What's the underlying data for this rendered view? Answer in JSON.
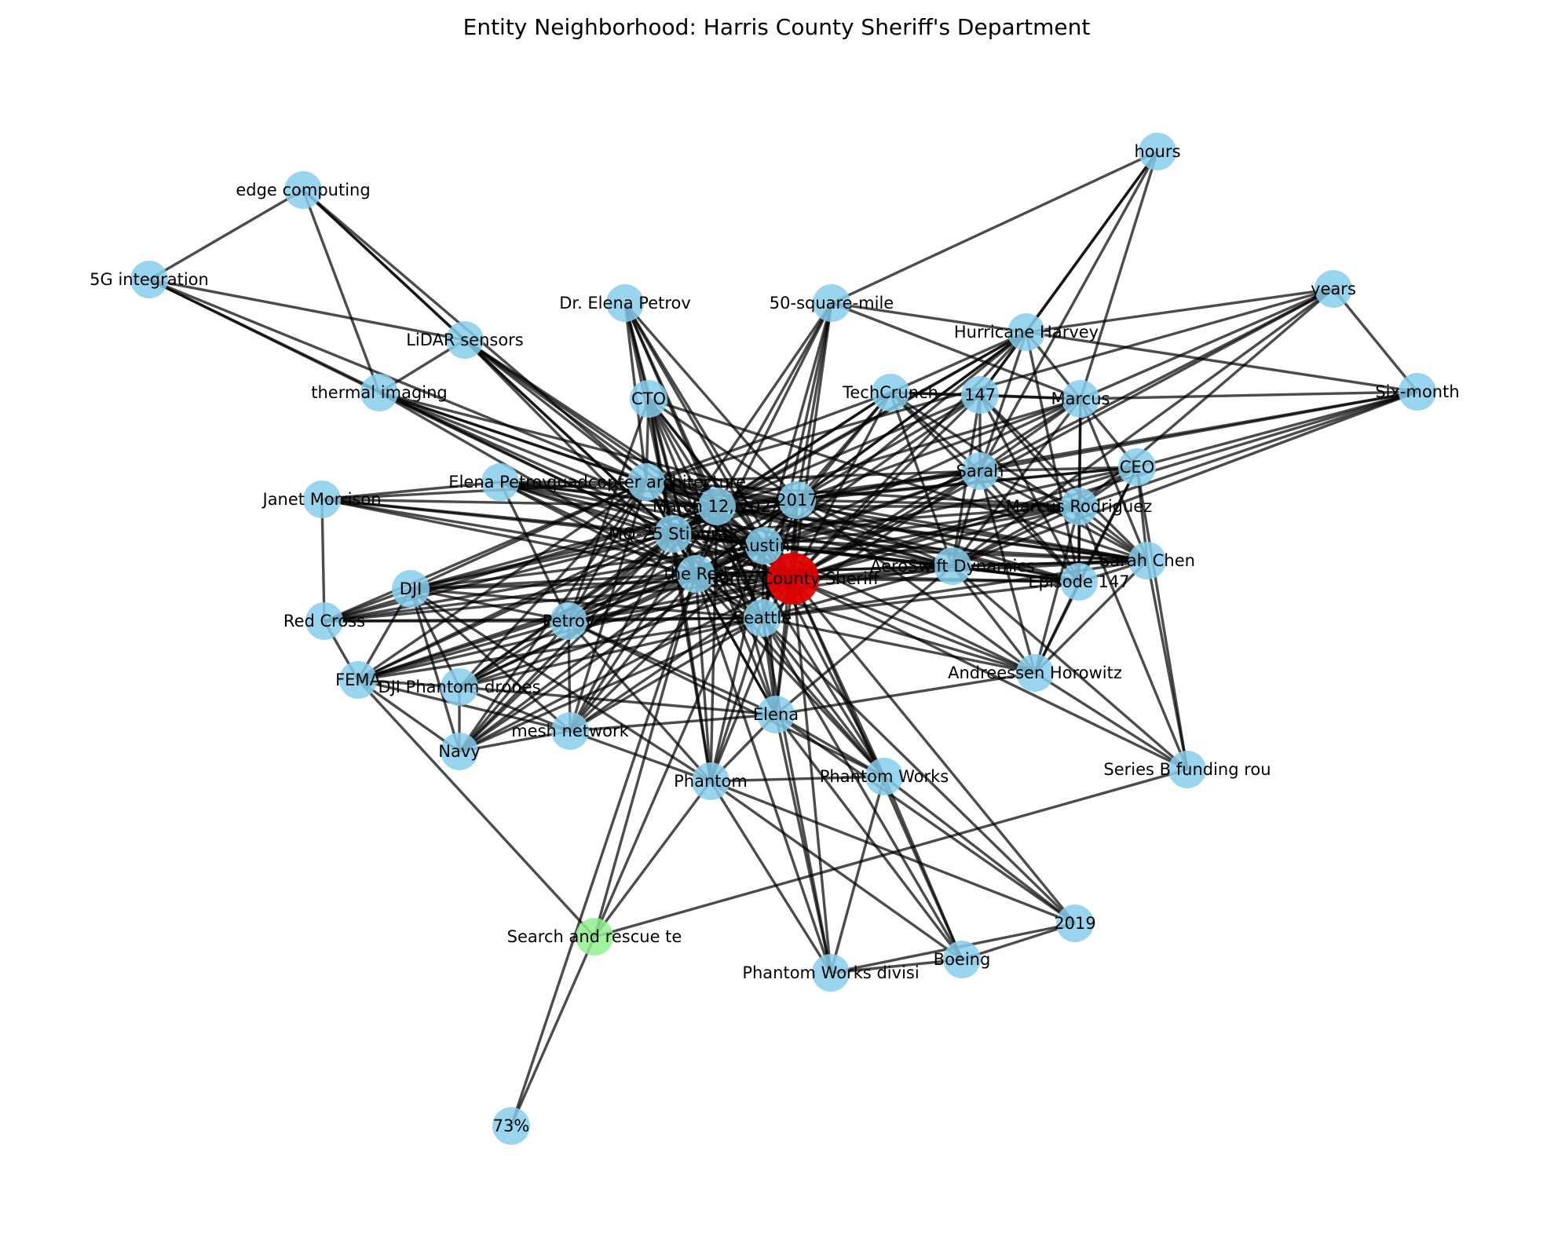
{
  "title": "Entity Neighborhood: Harris County Sheriff's Department",
  "legend": "none",
  "colors": {
    "focus": "#e00000",
    "highlight": "#90ee90",
    "default": "#87ceeb",
    "edge": "#000000"
  },
  "nodes": [
    {
      "id": "harris",
      "label": "Harris County Sheriff",
      "kind": "focus"
    },
    {
      "id": "sar",
      "label": "Search and rescue te",
      "kind": "highlight"
    },
    {
      "id": "hours",
      "label": "hours"
    },
    {
      "id": "edge",
      "label": "edge computing"
    },
    {
      "id": "5g",
      "label": "5G integration"
    },
    {
      "id": "petrovdr",
      "label": "Dr. Elena Petrov"
    },
    {
      "id": "50sq",
      "label": "50-square-mile"
    },
    {
      "id": "years",
      "label": "years"
    },
    {
      "id": "lidar",
      "label": "LiDAR sensors"
    },
    {
      "id": "harvey",
      "label": "Hurricane Harvey"
    },
    {
      "id": "thermal",
      "label": "thermal imaging"
    },
    {
      "id": "techcrunch",
      "label": "TechCrunch"
    },
    {
      "id": "n147",
      "label": "147"
    },
    {
      "id": "marcus",
      "label": "Marcus"
    },
    {
      "id": "sixmonth",
      "label": "Six-month"
    },
    {
      "id": "cto",
      "label": "CTO"
    },
    {
      "id": "sarah",
      "label": "Sarah"
    },
    {
      "id": "ceo",
      "label": "CEO"
    },
    {
      "id": "janet",
      "label": "Janet Morrison"
    },
    {
      "id": "elenapet",
      "label": "Elena Petrov"
    },
    {
      "id": "quad",
      "label": "quadcopter architecture"
    },
    {
      "id": "march",
      "label": "March 12, 2023"
    },
    {
      "id": "y2017",
      "label": "2017"
    },
    {
      "id": "mrodriguez",
      "label": "Marcus Rodriguez"
    },
    {
      "id": "mq25",
      "label": "MQ-25 Stingray"
    },
    {
      "id": "austin",
      "label": "Austin"
    },
    {
      "id": "aerosw",
      "label": "AeroSwift Dynamics"
    },
    {
      "id": "schen",
      "label": "Sarah Chen"
    },
    {
      "id": "ep147",
      "label": "Episode 147"
    },
    {
      "id": "dji",
      "label": "DJI"
    },
    {
      "id": "redcross",
      "label": "Red Cross"
    },
    {
      "id": "thered",
      "label": "the Red"
    },
    {
      "id": "petrov",
      "label": "Petrov"
    },
    {
      "id": "seattle",
      "label": "Seattle"
    },
    {
      "id": "fema",
      "label": "FEMA"
    },
    {
      "id": "djiphantom",
      "label": "DJI Phantom drones"
    },
    {
      "id": "a16z",
      "label": "Andreessen Horowitz"
    },
    {
      "id": "elena",
      "label": "Elena"
    },
    {
      "id": "mesh",
      "label": "mesh network"
    },
    {
      "id": "navy",
      "label": "Navy"
    },
    {
      "id": "phantomworks",
      "label": "Phantom Works"
    },
    {
      "id": "seriesb",
      "label": "Series B funding rou"
    },
    {
      "id": "phantom",
      "label": "Phantom"
    },
    {
      "id": "y2019",
      "label": "2019"
    },
    {
      "id": "boeing",
      "label": "Boeing"
    },
    {
      "id": "pwdiv",
      "label": "Phantom Works divisi"
    },
    {
      "id": "p73",
      "label": "73%"
    }
  ],
  "edges": [
    [
      "harris",
      "march"
    ],
    [
      "harris",
      "y2017"
    ],
    [
      "harris",
      "mq25"
    ],
    [
      "harris",
      "austin"
    ],
    [
      "harris",
      "thered"
    ],
    [
      "harris",
      "seattle"
    ],
    [
      "harris",
      "quad"
    ],
    [
      "harris",
      "cto"
    ],
    [
      "harris",
      "petrovdr"
    ],
    [
      "harris",
      "50sq"
    ],
    [
      "harris",
      "techcrunch"
    ],
    [
      "harris",
      "n147"
    ],
    [
      "harris",
      "sarah"
    ],
    [
      "harris",
      "marcus"
    ],
    [
      "harris",
      "ceo"
    ],
    [
      "harris",
      "mrodriguez"
    ],
    [
      "harris",
      "schen"
    ],
    [
      "harris",
      "ep147"
    ],
    [
      "harris",
      "aerosw"
    ],
    [
      "harris",
      "a16z"
    ],
    [
      "harris",
      "elena"
    ],
    [
      "harris",
      "phantomworks"
    ],
    [
      "harris",
      "phantom"
    ],
    [
      "harris",
      "petrov"
    ],
    [
      "harris",
      "dji"
    ],
    [
      "harris",
      "elenapet"
    ],
    [
      "harris",
      "janet"
    ],
    [
      "harris",
      "thermal"
    ],
    [
      "harris",
      "lidar"
    ],
    [
      "harris",
      "harvey"
    ],
    [
      "harris",
      "pwdiv"
    ],
    [
      "harris",
      "boeing"
    ],
    [
      "harris",
      "y2019"
    ],
    [
      "harris",
      "navy"
    ],
    [
      "harris",
      "mesh"
    ],
    [
      "harris",
      "djiphantom"
    ],
    [
      "harris",
      "fema"
    ],
    [
      "harris",
      "redcross"
    ],
    [
      "harris",
      "sixmonth"
    ],
    [
      "harris",
      "years"
    ],
    [
      "harris",
      "seriesb"
    ],
    [
      "sar",
      "thered"
    ],
    [
      "sar",
      "p73"
    ],
    [
      "sar",
      "seriesb"
    ],
    [
      "sar",
      "fema"
    ],
    [
      "sar",
      "austin"
    ],
    [
      "sar",
      "phantom"
    ],
    [
      "p73",
      "thered"
    ],
    [
      "hours",
      "50sq"
    ],
    [
      "hours",
      "harvey"
    ],
    [
      "hours",
      "marcus"
    ],
    [
      "hours",
      "sarah"
    ],
    [
      "hours",
      "n147"
    ],
    [
      "edge",
      "5g"
    ],
    [
      "edge",
      "lidar"
    ],
    [
      "edge",
      "thermal"
    ],
    [
      "edge",
      "quad"
    ],
    [
      "edge",
      "mq25"
    ],
    [
      "5g",
      "lidar"
    ],
    [
      "5g",
      "thermal"
    ],
    [
      "5g",
      "quad"
    ],
    [
      "5g",
      "mq25"
    ],
    [
      "lidar",
      "thermal"
    ],
    [
      "lidar",
      "quad"
    ],
    [
      "lidar",
      "mq25"
    ],
    [
      "lidar",
      "march"
    ],
    [
      "lidar",
      "austin"
    ],
    [
      "lidar",
      "thered"
    ],
    [
      "thermal",
      "quad"
    ],
    [
      "thermal",
      "mq25"
    ],
    [
      "thermal",
      "march"
    ],
    [
      "thermal",
      "austin"
    ],
    [
      "thermal",
      "thered"
    ],
    [
      "thermal",
      "y2017"
    ],
    [
      "petrovdr",
      "cto"
    ],
    [
      "petrovdr",
      "quad"
    ],
    [
      "petrovdr",
      "march"
    ],
    [
      "petrovdr",
      "mq25"
    ],
    [
      "petrovdr",
      "austin"
    ],
    [
      "petrovdr",
      "thered"
    ],
    [
      "petrovdr",
      "seattle"
    ],
    [
      "petrovdr",
      "y2017"
    ],
    [
      "50sq",
      "march"
    ],
    [
      "50sq",
      "y2017"
    ],
    [
      "50sq",
      "mq25"
    ],
    [
      "50sq",
      "austin"
    ],
    [
      "50sq",
      "thered"
    ],
    [
      "50sq",
      "seattle"
    ],
    [
      "50sq",
      "marcus"
    ],
    [
      "50sq",
      "harvey"
    ],
    [
      "years",
      "harvey"
    ],
    [
      "years",
      "sixmonth"
    ],
    [
      "years",
      "sarah"
    ],
    [
      "years",
      "mrodriguez"
    ],
    [
      "years",
      "aerosw"
    ],
    [
      "years",
      "quad"
    ],
    [
      "years",
      "marcus"
    ],
    [
      "harvey",
      "sarah"
    ],
    [
      "harvey",
      "marcus"
    ],
    [
      "harvey",
      "n147"
    ],
    [
      "harvey",
      "techcrunch"
    ],
    [
      "harvey",
      "y2017"
    ],
    [
      "harvey",
      "march"
    ],
    [
      "harvey",
      "mq25"
    ],
    [
      "harvey",
      "austin"
    ],
    [
      "harvey",
      "thered"
    ],
    [
      "harvey",
      "sixmonth"
    ],
    [
      "harvey",
      "ep147"
    ],
    [
      "techcrunch",
      "n147"
    ],
    [
      "techcrunch",
      "marcus"
    ],
    [
      "techcrunch",
      "sarah"
    ],
    [
      "techcrunch",
      "y2017"
    ],
    [
      "techcrunch",
      "march"
    ],
    [
      "techcrunch",
      "mq25"
    ],
    [
      "techcrunch",
      "austin"
    ],
    [
      "techcrunch",
      "aerosw"
    ],
    [
      "techcrunch",
      "schen"
    ],
    [
      "techcrunch",
      "ep147"
    ],
    [
      "techcrunch",
      "quad"
    ],
    [
      "n147",
      "marcus"
    ],
    [
      "n147",
      "sarah"
    ],
    [
      "n147",
      "ep147"
    ],
    [
      "n147",
      "aerosw"
    ],
    [
      "n147",
      "y2017"
    ],
    [
      "n147",
      "march"
    ],
    [
      "n147",
      "austin"
    ],
    [
      "n147",
      "mrodriguez"
    ],
    [
      "n147",
      "schen"
    ],
    [
      "marcus",
      "sixmonth"
    ],
    [
      "marcus",
      "sarah"
    ],
    [
      "marcus",
      "ceo"
    ],
    [
      "marcus",
      "mrodriguez"
    ],
    [
      "marcus",
      "schen"
    ],
    [
      "marcus",
      "ep147"
    ],
    [
      "marcus",
      "aerosw"
    ],
    [
      "marcus",
      "y2017"
    ],
    [
      "marcus",
      "march"
    ],
    [
      "marcus",
      "austin"
    ],
    [
      "sixmonth",
      "sarah"
    ],
    [
      "sixmonth",
      "ceo"
    ],
    [
      "sixmonth",
      "y2017"
    ],
    [
      "sixmonth",
      "aerosw"
    ],
    [
      "sixmonth",
      "mrodriguez"
    ],
    [
      "cto",
      "quad"
    ],
    [
      "cto",
      "march"
    ],
    [
      "cto",
      "mq25"
    ],
    [
      "cto",
      "austin"
    ],
    [
      "cto",
      "thered"
    ],
    [
      "cto",
      "seattle"
    ],
    [
      "cto",
      "y2017"
    ],
    [
      "cto",
      "schen"
    ],
    [
      "cto",
      "elena"
    ],
    [
      "cto",
      "phantom"
    ],
    [
      "cto",
      "petrov"
    ],
    [
      "sarah",
      "ceo"
    ],
    [
      "sarah",
      "mrodriguez"
    ],
    [
      "sarah",
      "schen"
    ],
    [
      "sarah",
      "ep147"
    ],
    [
      "sarah",
      "aerosw"
    ],
    [
      "sarah",
      "y2017"
    ],
    [
      "sarah",
      "march"
    ],
    [
      "sarah",
      "austin"
    ],
    [
      "sarah",
      "quad"
    ],
    [
      "sarah",
      "a16z"
    ],
    [
      "sarah",
      "thered"
    ],
    [
      "sarah",
      "seattle"
    ],
    [
      "ceo",
      "mrodriguez"
    ],
    [
      "ceo",
      "schen"
    ],
    [
      "ceo",
      "ep147"
    ],
    [
      "ceo",
      "aerosw"
    ],
    [
      "ceo",
      "y2017"
    ],
    [
      "ceo",
      "march"
    ],
    [
      "ceo",
      "seriesb"
    ],
    [
      "ceo",
      "a16z"
    ],
    [
      "ceo",
      "austin"
    ],
    [
      "janet",
      "redcross"
    ],
    [
      "janet",
      "elenapet"
    ],
    [
      "janet",
      "quad"
    ],
    [
      "janet",
      "march"
    ],
    [
      "janet",
      "mq25"
    ],
    [
      "janet",
      "austin"
    ],
    [
      "janet",
      "thered"
    ],
    [
      "elenapet",
      "quad"
    ],
    [
      "elenapet",
      "march"
    ],
    [
      "elenapet",
      "mq25"
    ],
    [
      "elenapet",
      "austin"
    ],
    [
      "elenapet",
      "thered"
    ],
    [
      "elenapet",
      "seattle"
    ],
    [
      "elenapet",
      "y2017"
    ],
    [
      "elenapet",
      "petrov"
    ],
    [
      "elenapet",
      "aerosw"
    ],
    [
      "elenapet",
      "schen"
    ],
    [
      "quad",
      "march"
    ],
    [
      "quad",
      "y2017"
    ],
    [
      "quad",
      "mq25"
    ],
    [
      "quad",
      "austin"
    ],
    [
      "quad",
      "thered"
    ],
    [
      "quad",
      "seattle"
    ],
    [
      "quad",
      "dji"
    ],
    [
      "quad",
      "redcross"
    ],
    [
      "quad",
      "fema"
    ],
    [
      "quad",
      "djiphantom"
    ],
    [
      "quad",
      "petrov"
    ],
    [
      "quad",
      "mesh"
    ],
    [
      "quad",
      "navy"
    ],
    [
      "quad",
      "aerosw"
    ],
    [
      "quad",
      "schen"
    ],
    [
      "quad",
      "mrodriguez"
    ],
    [
      "quad",
      "ep147"
    ],
    [
      "march",
      "y2017"
    ],
    [
      "march",
      "mq25"
    ],
    [
      "march",
      "austin"
    ],
    [
      "march",
      "thered"
    ],
    [
      "march",
      "seattle"
    ],
    [
      "march",
      "dji"
    ],
    [
      "march",
      "redcross"
    ],
    [
      "march",
      "fema"
    ],
    [
      "march",
      "djiphantom"
    ],
    [
      "march",
      "petrov"
    ],
    [
      "march",
      "mesh"
    ],
    [
      "march",
      "navy"
    ],
    [
      "march",
      "aerosw"
    ],
    [
      "march",
      "schen"
    ],
    [
      "march",
      "mrodriguez"
    ],
    [
      "march",
      "ep147"
    ],
    [
      "march",
      "elena"
    ],
    [
      "march",
      "phantom"
    ],
    [
      "march",
      "phantomworks"
    ],
    [
      "y2017",
      "mq25"
    ],
    [
      "y2017",
      "austin"
    ],
    [
      "y2017",
      "thered"
    ],
    [
      "y2017",
      "seattle"
    ],
    [
      "y2017",
      "aerosw"
    ],
    [
      "y2017",
      "schen"
    ],
    [
      "y2017",
      "mrodriguez"
    ],
    [
      "y2017",
      "ep147"
    ],
    [
      "y2017",
      "dji"
    ],
    [
      "y2017",
      "petrov"
    ],
    [
      "y2017",
      "elena"
    ],
    [
      "y2017",
      "a16z"
    ],
    [
      "mrodriguez",
      "schen"
    ],
    [
      "mrodriguez",
      "ep147"
    ],
    [
      "mrodriguez",
      "aerosw"
    ],
    [
      "mrodriguez",
      "austin"
    ],
    [
      "mrodriguez",
      "mq25"
    ],
    [
      "mrodriguez",
      "thered"
    ],
    [
      "mrodriguez",
      "seriesb"
    ],
    [
      "mrodriguez",
      "a16z"
    ],
    [
      "mq25",
      "austin"
    ],
    [
      "mq25",
      "thered"
    ],
    [
      "mq25",
      "seattle"
    ],
    [
      "mq25",
      "dji"
    ],
    [
      "mq25",
      "redcross"
    ],
    [
      "mq25",
      "fema"
    ],
    [
      "mq25",
      "djiphantom"
    ],
    [
      "mq25",
      "petrov"
    ],
    [
      "mq25",
      "mesh"
    ],
    [
      "mq25",
      "navy"
    ],
    [
      "mq25",
      "aerosw"
    ],
    [
      "mq25",
      "schen"
    ],
    [
      "mq25",
      "ep147"
    ],
    [
      "mq25",
      "elena"
    ],
    [
      "mq25",
      "phantom"
    ],
    [
      "mq25",
      "phantomworks"
    ],
    [
      "austin",
      "thered"
    ],
    [
      "austin",
      "seattle"
    ],
    [
      "austin",
      "dji"
    ],
    [
      "austin",
      "redcross"
    ],
    [
      "austin",
      "fema"
    ],
    [
      "austin",
      "djiphantom"
    ],
    [
      "austin",
      "petrov"
    ],
    [
      "austin",
      "mesh"
    ],
    [
      "austin",
      "navy"
    ],
    [
      "austin",
      "aerosw"
    ],
    [
      "austin",
      "schen"
    ],
    [
      "austin",
      "ep147"
    ],
    [
      "austin",
      "elena"
    ],
    [
      "austin",
      "phantom"
    ],
    [
      "austin",
      "phantomworks"
    ],
    [
      "austin",
      "a16z"
    ],
    [
      "aerosw",
      "schen"
    ],
    [
      "aerosw",
      "ep147"
    ],
    [
      "aerosw",
      "a16z"
    ],
    [
      "aerosw",
      "seriesb"
    ],
    [
      "aerosw",
      "thered"
    ],
    [
      "aerosw",
      "seattle"
    ],
    [
      "aerosw",
      "petrov"
    ],
    [
      "aerosw",
      "elena"
    ],
    [
      "schen",
      "ep147"
    ],
    [
      "schen",
      "seriesb"
    ],
    [
      "schen",
      "a16z"
    ],
    [
      "schen",
      "thered"
    ],
    [
      "schen",
      "seattle"
    ],
    [
      "ep147",
      "a16z"
    ],
    [
      "ep147",
      "thered"
    ],
    [
      "ep147",
      "seattle"
    ],
    [
      "dji",
      "redcross"
    ],
    [
      "dji",
      "fema"
    ],
    [
      "dji",
      "djiphantom"
    ],
    [
      "dji",
      "petrov"
    ],
    [
      "dji",
      "mesh"
    ],
    [
      "dji",
      "navy"
    ],
    [
      "dji",
      "thered"
    ],
    [
      "dji",
      "seattle"
    ],
    [
      "dji",
      "phantom"
    ],
    [
      "redcross",
      "fema"
    ],
    [
      "redcross",
      "thered"
    ],
    [
      "redcross",
      "petrov"
    ],
    [
      "redcross",
      "seattle"
    ],
    [
      "thered",
      "petrov"
    ],
    [
      "thered",
      "seattle"
    ],
    [
      "thered",
      "fema"
    ],
    [
      "thered",
      "djiphantom"
    ],
    [
      "thered",
      "mesh"
    ],
    [
      "thered",
      "navy"
    ],
    [
      "thered",
      "elena"
    ],
    [
      "thered",
      "phantom"
    ],
    [
      "thered",
      "phantomworks"
    ],
    [
      "thered",
      "pwdiv"
    ],
    [
      "thered",
      "a16z"
    ],
    [
      "petrov",
      "seattle"
    ],
    [
      "petrov",
      "fema"
    ],
    [
      "petrov",
      "djiphantom"
    ],
    [
      "petrov",
      "mesh"
    ],
    [
      "petrov",
      "navy"
    ],
    [
      "petrov",
      "elena"
    ],
    [
      "petrov",
      "phantom"
    ],
    [
      "petrov",
      "phantomworks"
    ],
    [
      "seattle",
      "fema"
    ],
    [
      "seattle",
      "djiphantom"
    ],
    [
      "seattle",
      "mesh"
    ],
    [
      "seattle",
      "navy"
    ],
    [
      "seattle",
      "elena"
    ],
    [
      "seattle",
      "phantom"
    ],
    [
      "seattle",
      "phantomworks"
    ],
    [
      "seattle",
      "pwdiv"
    ],
    [
      "seattle",
      "boeing"
    ],
    [
      "seattle",
      "y2019"
    ],
    [
      "seattle",
      "a16z"
    ],
    [
      "fema",
      "djiphantom"
    ],
    [
      "fema",
      "mesh"
    ],
    [
      "fema",
      "navy"
    ],
    [
      "djiphantom",
      "mesh"
    ],
    [
      "djiphantom",
      "navy"
    ],
    [
      "djiphantom",
      "elena"
    ],
    [
      "mesh",
      "navy"
    ],
    [
      "mesh",
      "phantom"
    ],
    [
      "mesh",
      "elena"
    ],
    [
      "elena",
      "phantom"
    ],
    [
      "elena",
      "phantomworks"
    ],
    [
      "elena",
      "pwdiv"
    ],
    [
      "elena",
      "boeing"
    ],
    [
      "elena",
      "y2019"
    ],
    [
      "elena",
      "a16z"
    ],
    [
      "phantomworks",
      "phantom"
    ],
    [
      "phantomworks",
      "pwdiv"
    ],
    [
      "phantomworks",
      "boeing"
    ],
    [
      "phantomworks",
      "y2019"
    ],
    [
      "phantom",
      "pwdiv"
    ],
    [
      "phantom",
      "boeing"
    ],
    [
      "phantom",
      "y2019"
    ],
    [
      "boeing",
      "pwdiv"
    ],
    [
      "boeing",
      "y2019"
    ],
    [
      "pwdiv",
      "y2019"
    ],
    [
      "seriesb",
      "a16z"
    ]
  ]
}
